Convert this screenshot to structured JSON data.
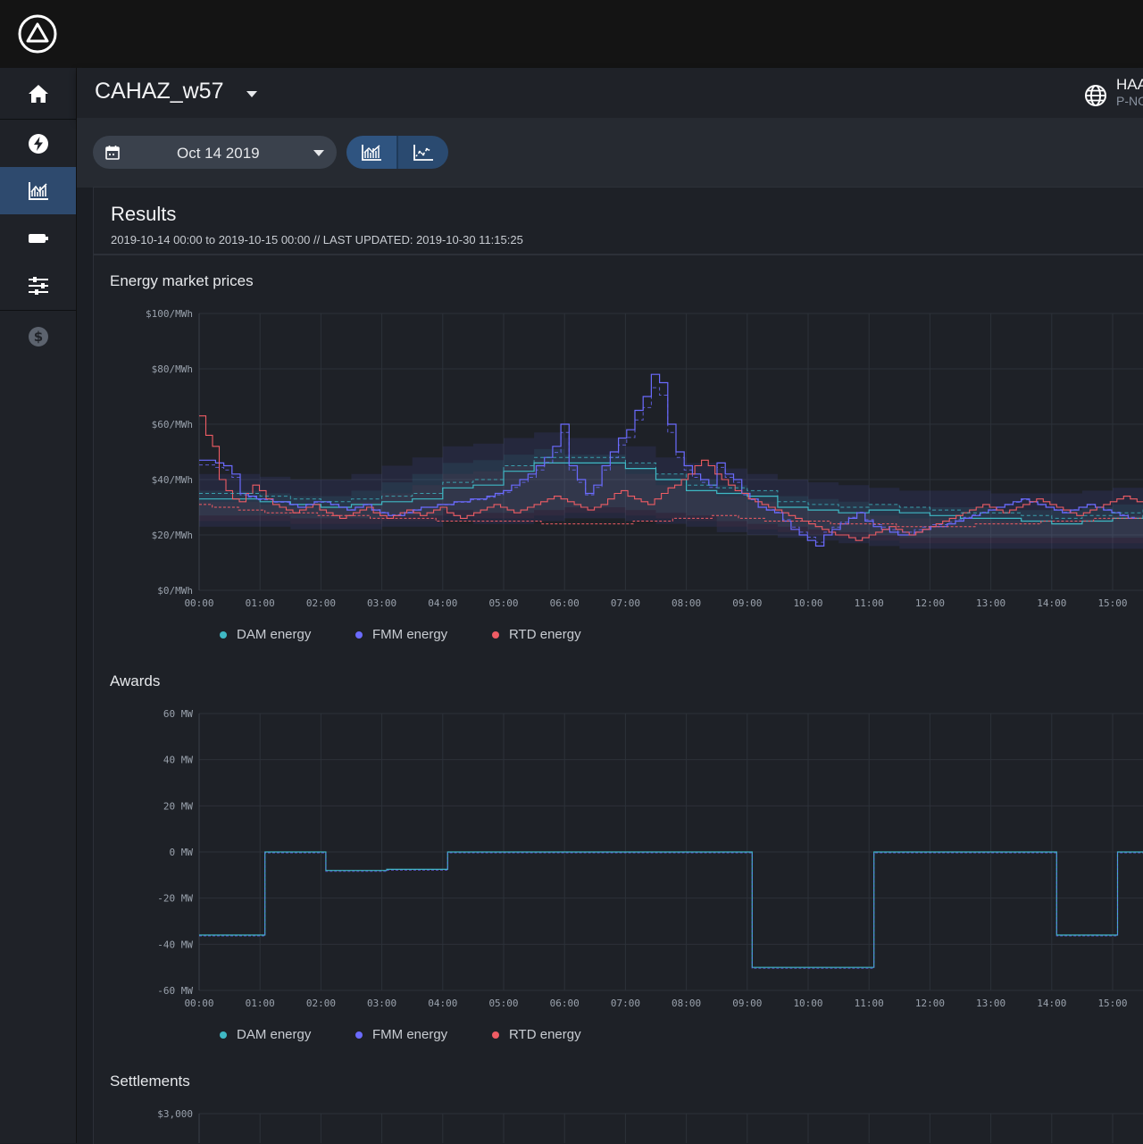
{
  "header": {
    "title": "CAHAZ_w57",
    "account_name": "HAA",
    "account_sub": "P-NO"
  },
  "toolbar": {
    "date": "Oct 14 2019"
  },
  "results": {
    "title": "Results",
    "subtitle": "2019-10-14 00:00 to 2019-10-15 00:00 // LAST UPDATED: 2019-10-30 11:15:25"
  },
  "sections": {
    "prices": "Energy market prices",
    "awards": "Awards",
    "settlements": "Settlements"
  },
  "colors": {
    "dam": "#3fb8c4",
    "fmm": "#6b6bff",
    "rtd": "#ef5c64",
    "accent": "#2f5480"
  },
  "legend": [
    {
      "label": "DAM energy",
      "color": "#3fb8c4"
    },
    {
      "label": "FMM energy",
      "color": "#6b6bff"
    },
    {
      "label": "RTD energy",
      "color": "#ef5c64"
    }
  ],
  "chart_data": [
    {
      "type": "line",
      "title": "Energy market prices",
      "x_ticks": [
        "00:00",
        "01:00",
        "02:00",
        "03:00",
        "04:00",
        "05:00",
        "06:00",
        "07:00",
        "08:00",
        "09:00",
        "10:00",
        "11:00",
        "12:00",
        "13:00",
        "14:00",
        "15:00"
      ],
      "y_ticks": [
        "$100/MWh",
        "$80/MWh",
        "$60/MWh",
        "$40/MWh",
        "$20/MWh",
        "$0/MWh"
      ],
      "ylim": [
        0,
        100
      ],
      "xlim_hours": [
        0,
        15.5
      ],
      "grid": true,
      "legend_position": "bottom-left",
      "series": [
        {
          "name": "DAM energy",
          "hourly_values": [
            33,
            33,
            32,
            31,
            30,
            31,
            32,
            33,
            37,
            38,
            43,
            46,
            46,
            46,
            44,
            40,
            36,
            35,
            34,
            30,
            29,
            28,
            29,
            28,
            27,
            26,
            26,
            25,
            24,
            25,
            26,
            27,
            28,
            28,
            29,
            30
          ],
          "p10": [
            23,
            23,
            23,
            22,
            22,
            22,
            23,
            23,
            25,
            24,
            24,
            25,
            26,
            26,
            25,
            24,
            23,
            21,
            20,
            19,
            18,
            17,
            16,
            15,
            15,
            15,
            15,
            15,
            15,
            15,
            15,
            14,
            14,
            15,
            16,
            17
          ],
          "p90": [
            42,
            42,
            41,
            40,
            40,
            42,
            45,
            48,
            52,
            53,
            55,
            57,
            55,
            55,
            52,
            48,
            46,
            44,
            42,
            40,
            39,
            38,
            37,
            36,
            36,
            36,
            35,
            35,
            35,
            36,
            37,
            38,
            38,
            39,
            40,
            42
          ]
        },
        {
          "name": "FMM energy",
          "values_15min": [
            47,
            47,
            46,
            45,
            42,
            35,
            34,
            33,
            33,
            32,
            32,
            31,
            30,
            31,
            32,
            32,
            31,
            30,
            29,
            30,
            31,
            29,
            28,
            27,
            27,
            28,
            29,
            30,
            30,
            31,
            31,
            32,
            32,
            33,
            33,
            34,
            35,
            36,
            38,
            40,
            42,
            45,
            48,
            52,
            60,
            45,
            40,
            35,
            38,
            45,
            50,
            55,
            58,
            65,
            70,
            78,
            75,
            60,
            50,
            45,
            42,
            40,
            38,
            46,
            42,
            40,
            35,
            33,
            30,
            29,
            28,
            25,
            22,
            20,
            18,
            16,
            20,
            22,
            24,
            26,
            28,
            25,
            23,
            22,
            21,
            20,
            20,
            21,
            22,
            23,
            23,
            24,
            25,
            26,
            27,
            28,
            29,
            30,
            31,
            32,
            33,
            32,
            31,
            30,
            29,
            28,
            29,
            30,
            31,
            30,
            29,
            28,
            27,
            26
          ]
        },
        {
          "name": "RTD energy",
          "values_5min": [
            63,
            56,
            52,
            40,
            36,
            33,
            32,
            35,
            38,
            36,
            33,
            31,
            30,
            29,
            28,
            29,
            30,
            31,
            29,
            28,
            27,
            26,
            27,
            28,
            29,
            30,
            28,
            27,
            26,
            27,
            28,
            29,
            28,
            27,
            28,
            29,
            30,
            28,
            27,
            26,
            27,
            28,
            29,
            30,
            31,
            30,
            29,
            28,
            29,
            30,
            31,
            32,
            33,
            34,
            33,
            32,
            31,
            30,
            29,
            30,
            31,
            33,
            35,
            36,
            34,
            33,
            32,
            31,
            33,
            35,
            37,
            38,
            40,
            42,
            45,
            47,
            45,
            42,
            40,
            38,
            36,
            35,
            33,
            32,
            31,
            30,
            29,
            28,
            27,
            26,
            25,
            24,
            23,
            22,
            21,
            20,
            20,
            19,
            18,
            19,
            20,
            21,
            22,
            23,
            22,
            21,
            20,
            21,
            22,
            23,
            24,
            25,
            26,
            27,
            28,
            29,
            30,
            31,
            30,
            29,
            28,
            29,
            30,
            31,
            32,
            33,
            32,
            31,
            30,
            29,
            28,
            27,
            28,
            29,
            30,
            31,
            32,
            33,
            34,
            33,
            32,
            31
          ]
        },
        {
          "name": "RTD energy (dashed)",
          "values_15min": [
            31,
            30,
            30,
            29,
            29,
            28,
            28,
            28,
            28,
            27,
            27,
            27,
            27,
            26,
            26,
            26,
            26,
            26,
            25,
            25,
            25,
            25,
            25,
            25,
            25,
            25,
            24,
            24,
            24,
            24,
            24,
            24,
            24,
            25,
            25,
            25,
            26,
            26,
            26,
            27,
            27,
            26,
            26,
            25,
            25,
            25,
            25,
            25,
            24,
            24,
            24,
            24,
            24,
            23,
            23,
            23,
            23,
            23,
            23,
            24,
            24,
            24,
            24,
            24,
            25,
            25,
            25,
            25,
            26,
            26,
            26,
            26
          ]
        }
      ]
    },
    {
      "type": "line",
      "title": "Awards",
      "x_ticks": [
        "00:00",
        "01:00",
        "02:00",
        "03:00",
        "04:00",
        "05:00",
        "06:00",
        "07:00",
        "08:00",
        "09:00",
        "10:00",
        "11:00",
        "12:00",
        "13:00",
        "14:00",
        "15:00"
      ],
      "y_ticks": [
        "60  MW",
        "40  MW",
        "20  MW",
        "0  MW",
        "-20  MW",
        "-40  MW",
        "-60  MW"
      ],
      "ylim": [
        -60,
        60
      ],
      "xlim_hours": [
        0,
        15.5
      ],
      "grid": true,
      "series": [
        {
          "name": "DAM energy",
          "steps": [
            [
              0,
              -36
            ],
            [
              1.08,
              0
            ],
            [
              2.08,
              -8
            ],
            [
              3.08,
              -7.5
            ],
            [
              4.08,
              0
            ],
            [
              9.08,
              -50
            ],
            [
              11.08,
              0
            ],
            [
              14.08,
              -36
            ],
            [
              15.08,
              0
            ]
          ]
        }
      ]
    },
    {
      "type": "line",
      "title": "Settlements",
      "y_ticks": [
        "$3,000"
      ],
      "grid": true,
      "series": []
    }
  ]
}
